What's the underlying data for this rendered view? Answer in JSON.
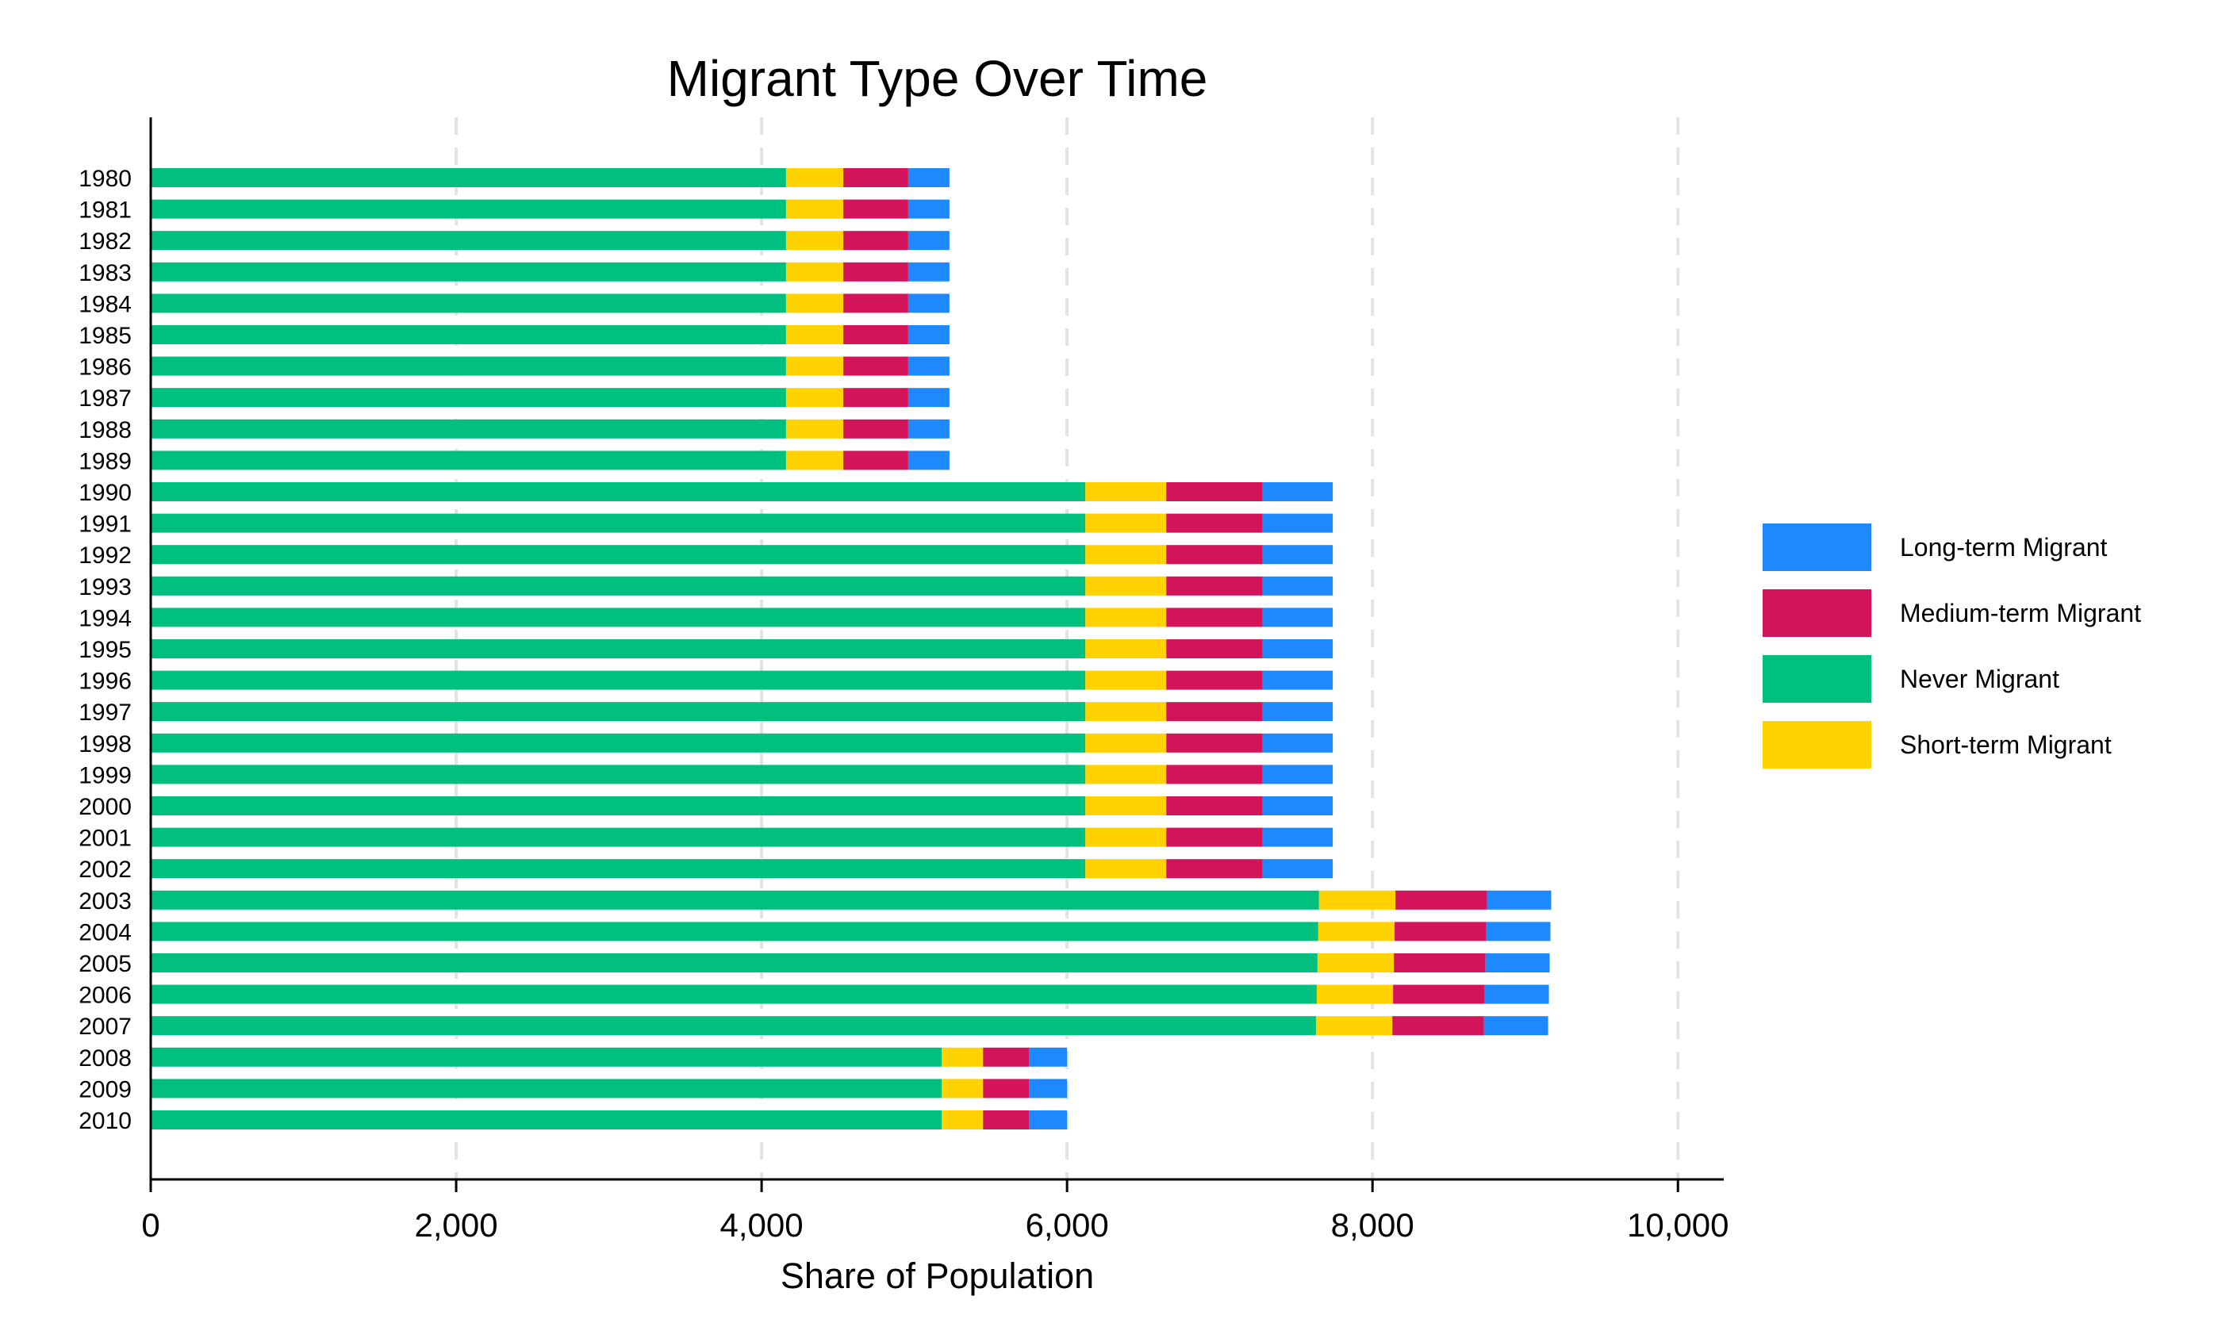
{
  "chart_data": {
    "type": "bar",
    "orientation": "horizontal",
    "stacked": true,
    "title": "Migrant Type Over Time",
    "xlabel": "Share of Population",
    "ylabel": "",
    "xlim": [
      0,
      10300
    ],
    "xticks": [
      0,
      2000,
      4000,
      6000,
      8000,
      10000
    ],
    "xtick_labels": [
      "0",
      "2,000",
      "4,000",
      "6,000",
      "8,000",
      "10,000"
    ],
    "grid": "vertical dashed",
    "legend_position": "right",
    "categories": [
      "1980",
      "1981",
      "1982",
      "1983",
      "1984",
      "1985",
      "1986",
      "1987",
      "1988",
      "1989",
      "1990",
      "1991",
      "1992",
      "1993",
      "1994",
      "1995",
      "1996",
      "1997",
      "1998",
      "1999",
      "2000",
      "2001",
      "2002",
      "2003",
      "2004",
      "2005",
      "2006",
      "2007",
      "2008",
      "2009",
      "2010"
    ],
    "series": [
      {
        "name": "Never Migrant",
        "color": "#00c07f",
        "values": [
          4160,
          4160,
          4160,
          4160,
          4160,
          4160,
          4160,
          4160,
          4160,
          4160,
          6120,
          6120,
          6120,
          6120,
          6120,
          6120,
          6120,
          6120,
          6120,
          6120,
          6120,
          6120,
          6120,
          7650,
          7645,
          7640,
          7635,
          7630,
          5180,
          5180,
          5180
        ]
      },
      {
        "name": "Short-term Migrant",
        "color": "#ffd200",
        "values": [
          375,
          375,
          375,
          375,
          375,
          375,
          375,
          375,
          375,
          375,
          530,
          530,
          530,
          530,
          530,
          530,
          530,
          530,
          530,
          530,
          530,
          530,
          530,
          500,
          500,
          500,
          500,
          500,
          270,
          270,
          270
        ]
      },
      {
        "name": "Medium-term Migrant",
        "color": "#d4145a",
        "values": [
          425,
          425,
          425,
          425,
          425,
          425,
          425,
          425,
          425,
          425,
          630,
          630,
          630,
          630,
          630,
          630,
          630,
          630,
          630,
          630,
          630,
          630,
          630,
          600,
          600,
          600,
          600,
          600,
          300,
          300,
          300
        ]
      },
      {
        "name": "Long-term Migrant",
        "color": "#1e88ff",
        "values": [
          270,
          270,
          270,
          270,
          270,
          270,
          270,
          270,
          270,
          270,
          460,
          460,
          460,
          460,
          460,
          460,
          460,
          460,
          460,
          460,
          460,
          460,
          460,
          420,
          420,
          420,
          420,
          420,
          250,
          250,
          250
        ]
      }
    ]
  },
  "legend": [
    {
      "label": "Long-term Migrant",
      "color": "#1e88ff"
    },
    {
      "label": "Medium-term Migrant",
      "color": "#d4145a"
    },
    {
      "label": "Never Migrant",
      "color": "#00c07f"
    },
    {
      "label": "Short-term Migrant",
      "color": "#ffd200"
    }
  ]
}
